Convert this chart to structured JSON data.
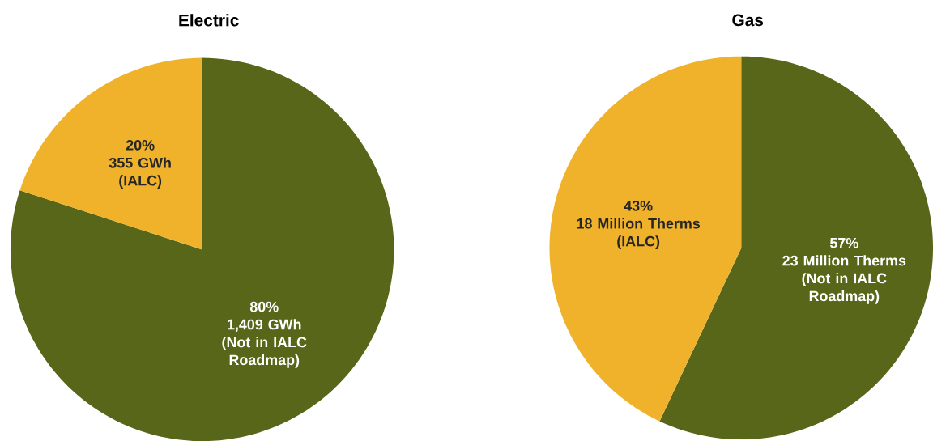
{
  "chart_data": [
    {
      "type": "pie",
      "title": "Electric",
      "categories": [
        "(Not in IALC Roadmap)",
        "(IALC)"
      ],
      "values": [
        80,
        20
      ],
      "colors": [
        "#58661a",
        "#f0b22a"
      ],
      "value_labels": [
        "80%",
        "20%"
      ],
      "annotations": [
        "1,409 GWh",
        "355 GWh"
      ]
    },
    {
      "type": "pie",
      "title": "Gas",
      "categories": [
        "(Not in IALC Roadmap)",
        "(IALC)"
      ],
      "values": [
        57,
        43
      ],
      "colors": [
        "#58661a",
        "#f0b22a"
      ],
      "value_labels": [
        "57%",
        "43%"
      ],
      "annotations": [
        "23 Million Therms",
        "18 Million Therms"
      ]
    }
  ]
}
